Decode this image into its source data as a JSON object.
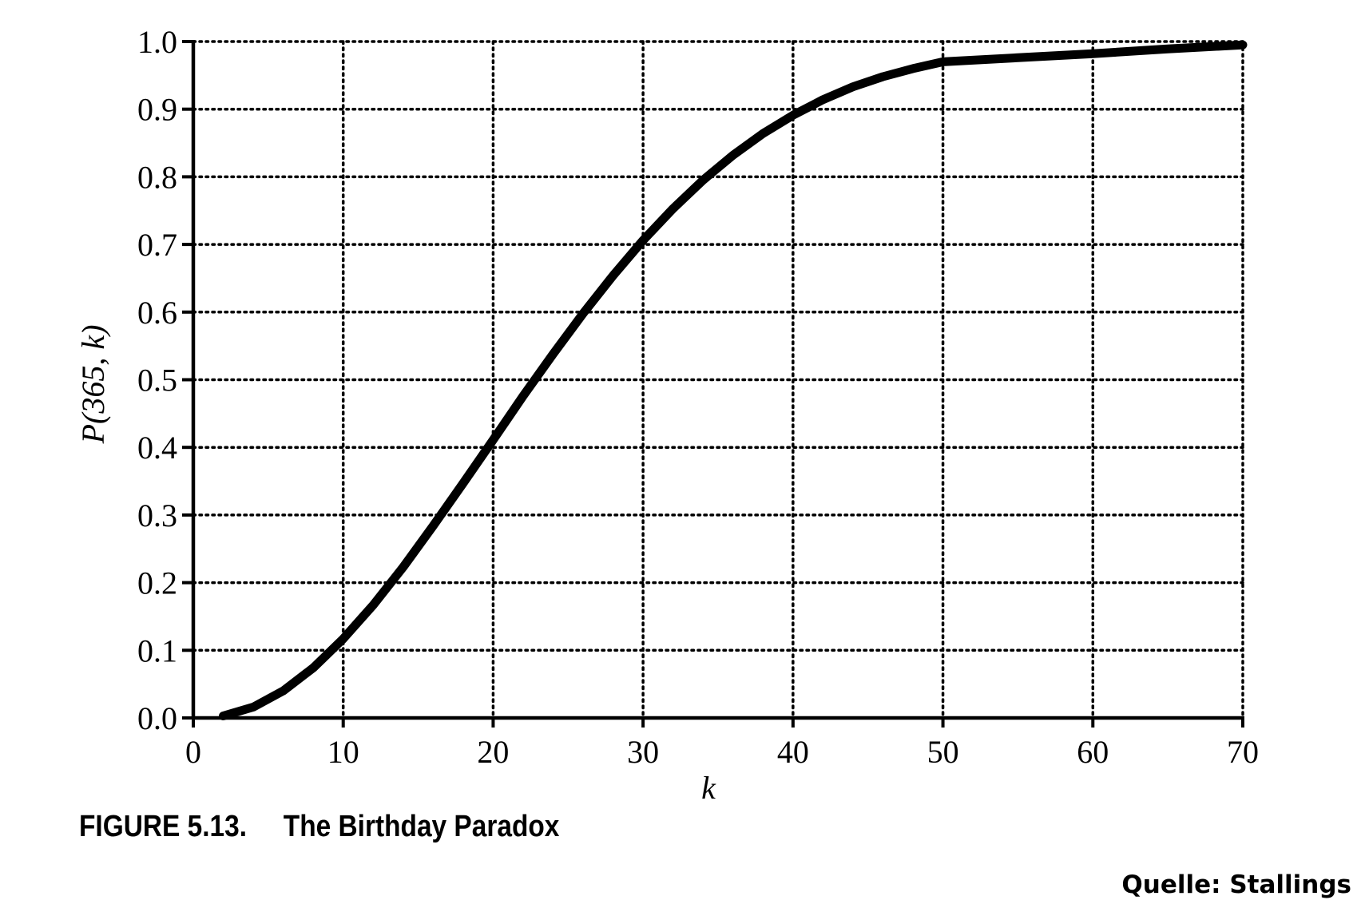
{
  "chart_data": {
    "type": "line",
    "xlabel": "k",
    "ylabel": "P(365, k)",
    "xlim": [
      0,
      70
    ],
    "ylim": [
      0.0,
      1.0
    ],
    "x_ticks": [
      "0",
      "10",
      "20",
      "30",
      "40",
      "50",
      "60",
      "70"
    ],
    "y_ticks": [
      "0.0",
      "0.1",
      "0.2",
      "0.3",
      "0.4",
      "0.5",
      "0.6",
      "0.7",
      "0.8",
      "0.9",
      "1.0"
    ],
    "grid": true,
    "grid_style": "dotted",
    "series": [
      {
        "x": [
          2,
          4,
          6,
          8,
          10,
          12,
          14,
          16,
          18,
          20,
          22,
          24,
          26,
          28,
          30,
          32,
          34,
          36,
          38,
          40,
          42,
          44,
          46,
          48,
          50,
          55,
          60,
          65,
          70
        ],
        "y": [
          0.003,
          0.016,
          0.04,
          0.074,
          0.117,
          0.167,
          0.223,
          0.284,
          0.347,
          0.411,
          0.476,
          0.538,
          0.598,
          0.654,
          0.706,
          0.753,
          0.795,
          0.832,
          0.864,
          0.891,
          0.914,
          0.933,
          0.948,
          0.96,
          0.97,
          0.976,
          0.982,
          0.989,
          0.995
        ]
      }
    ]
  },
  "caption": {
    "figure_label": "FIGURE 5.13.",
    "figure_title": "The Birthday Paradox"
  },
  "source": "Quelle: Stallings",
  "colors": {
    "line": "#000000",
    "grid": "#000000",
    "background": "#ffffff"
  }
}
